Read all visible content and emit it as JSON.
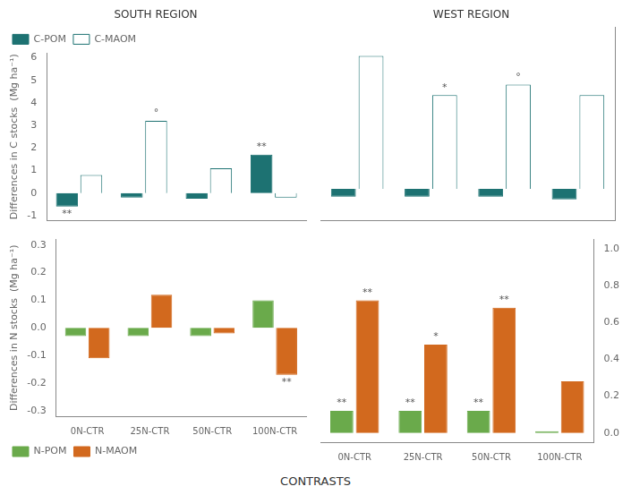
{
  "xlabel": "CONTRASTS",
  "chart_data": [
    {
      "type": "bar",
      "title": "SOUTH REGION",
      "ylabel": "Differences in C stocks  (Mg ha⁻¹)",
      "categories": [
        "0N-CTR",
        "25N-CTR",
        "50N-CTR",
        "100N-CTR"
      ],
      "series": [
        {
          "name": "C-POM",
          "color": "#1d7272",
          "values": [
            -0.6,
            -0.2,
            -0.25,
            1.7
          ]
        },
        {
          "name": "C-MAOM",
          "color": "#ffffff",
          "values": [
            0.8,
            3.2,
            1.1,
            -0.2
          ]
        }
      ],
      "ylim": [
        -1.2,
        6.2
      ],
      "yticks": [
        -1,
        0,
        1,
        2,
        3,
        4,
        5,
        6
      ],
      "grid": false,
      "legend": "upper left",
      "tick_labels": "y",
      "annotations": [
        {
          "text": "**",
          "series": "C-POM",
          "category": "0N-CTR"
        },
        {
          "text": "°",
          "series": "C-MAOM",
          "category": "25N-CTR"
        },
        {
          "text": "**",
          "series": "C-POM",
          "category": "100N-CTR"
        }
      ]
    },
    {
      "type": "bar",
      "title": "WEST REGION",
      "categories": [
        "0N-CTR",
        "25N-CTR",
        "50N-CTR",
        "100N-CTR"
      ],
      "series": [
        {
          "name": "C-POM",
          "color": "#1d7272",
          "values": [
            -0.3,
            -0.3,
            -0.3,
            -0.4
          ]
        },
        {
          "name": "C-MAOM",
          "color": "#ffffff",
          "values": [
            5.1,
            3.6,
            4.0,
            3.6
          ]
        }
      ],
      "ylim": [
        -1.2,
        6.2
      ],
      "grid": false,
      "tick_labels": false,
      "annotations": [
        {
          "text": "*",
          "series": "C-MAOM",
          "category": "25N-CTR"
        },
        {
          "text": "°",
          "series": "C-MAOM",
          "category": "50N-CTR"
        }
      ]
    },
    {
      "type": "bar",
      "ylabel": "Differences in N stocks  (Mg ha⁻¹)",
      "categories": [
        "0N-CTR",
        "25N-CTR",
        "50N-CTR",
        "100N-CTR"
      ],
      "series": [
        {
          "name": "N-POM",
          "color": "#6aaa4b",
          "values": [
            -0.03,
            -0.03,
            -0.03,
            0.1
          ]
        },
        {
          "name": "N-MAOM",
          "color": "#d2691e",
          "values": [
            -0.11,
            0.12,
            -0.02,
            -0.17
          ]
        }
      ],
      "ylim": [
        -0.32,
        0.32
      ],
      "yticks": [
        -0.3,
        -0.2,
        -0.1,
        {
          "value": 0,
          "label": "0.0"
        },
        0.1,
        0.2,
        0.3
      ],
      "grid": false,
      "legend": "lower left",
      "annotations": [
        {
          "text": "**",
          "series": "N-MAOM",
          "category": "100N-CTR"
        }
      ]
    },
    {
      "type": "bar",
      "categories": [
        "0N-CTR",
        "25N-CTR",
        "50N-CTR",
        "100N-CTR"
      ],
      "series": [
        {
          "name": "N-POM",
          "color": "#6aaa4b",
          "values": [
            0.12,
            0.12,
            0.12,
            0.01
          ]
        },
        {
          "name": "N-MAOM",
          "color": "#d2691e",
          "values": [
            0.72,
            0.48,
            0.68,
            0.28
          ]
        }
      ],
      "ylim": [
        -0.05,
        1.05
      ],
      "yticks": [
        {
          "value": 0,
          "label": "0.0"
        },
        0.2,
        0.4,
        0.6,
        0.8,
        {
          "value": 1,
          "label": "1.0"
        }
      ],
      "grid": false,
      "annotations": [
        {
          "text": "**",
          "series": "N-POM",
          "category": "0N-CTR"
        },
        {
          "text": "**",
          "series": "N-POM",
          "category": "25N-CTR"
        },
        {
          "text": "**",
          "series": "N-POM",
          "category": "50N-CTR"
        },
        {
          "text": "**",
          "series": "N-MAOM",
          "category": "0N-CTR"
        },
        {
          "text": "*",
          "series": "N-MAOM",
          "category": "25N-CTR"
        },
        {
          "text": "**",
          "series": "N-MAOM",
          "category": "50N-CTR"
        }
      ]
    }
  ]
}
